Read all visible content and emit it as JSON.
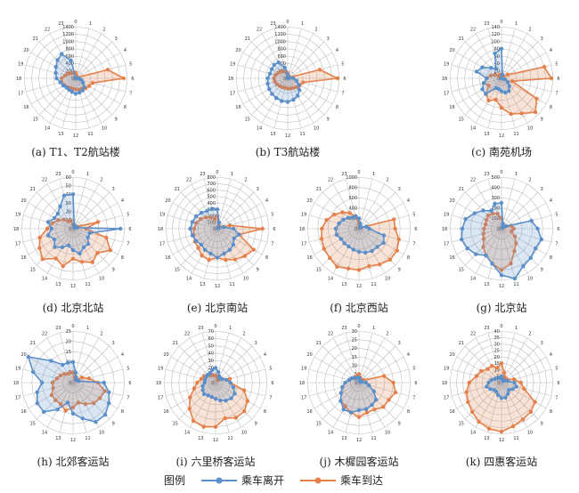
{
  "legend": {
    "title": "图例",
    "depart_label": "乘车离开",
    "arrive_label": "乘车到达"
  },
  "colors": {
    "depart": "#5b8fc9",
    "arrive": "#e5804a",
    "grid": "#bdbdbd"
  },
  "hours": [
    "0",
    "1",
    "2",
    "3",
    "4",
    "5",
    "6",
    "7",
    "8",
    "9",
    "10",
    "11",
    "12",
    "13",
    "14",
    "15",
    "16",
    "17",
    "18",
    "19",
    "20",
    "21",
    "22",
    "23"
  ],
  "chart_data": [
    {
      "type": "radar",
      "caption": "(a) T1、T2航站楼",
      "ticks": [
        0,
        200,
        400,
        600,
        800,
        1000,
        1200,
        1400
      ],
      "rmax": 1400,
      "series": [
        {
          "name": "乘车离开",
          "values": [
            20,
            10,
            5,
            5,
            5,
            10,
            80,
            150,
            230,
            330,
            380,
            400,
            420,
            380,
            360,
            350,
            390,
            430,
            520,
            560,
            620,
            700,
            760,
            500
          ]
        },
        {
          "name": "乘车到达",
          "values": [
            150,
            80,
            30,
            20,
            50,
            900,
            1300,
            480,
            420,
            380,
            330,
            320,
            300,
            290,
            300,
            330,
            360,
            400,
            380,
            300,
            250,
            200,
            170,
            160
          ]
        }
      ]
    },
    {
      "type": "radar",
      "caption": "(b) T3航站楼",
      "ticks": [
        0,
        200,
        400,
        600,
        800,
        1000,
        1200,
        1400
      ],
      "rmax": 1400,
      "series": [
        {
          "name": "乘车离开",
          "values": [
            100,
            30,
            10,
            5,
            10,
            50,
            150,
            250,
            350,
            450,
            540,
            600,
            640,
            640,
            620,
            600,
            580,
            560,
            540,
            500,
            500,
            520,
            500,
            300
          ]
        },
        {
          "name": "乘车到达",
          "values": [
            130,
            60,
            30,
            20,
            60,
            900,
            1350,
            430,
            380,
            340,
            300,
            290,
            280,
            270,
            280,
            300,
            330,
            360,
            370,
            340,
            300,
            260,
            220,
            180
          ]
        }
      ]
    },
    {
      "type": "radar",
      "caption": "(c) 南苑机场",
      "ticks": [
        0,
        20,
        40,
        60,
        80,
        100,
        120,
        140
      ],
      "rmax": 140,
      "series": [
        {
          "name": "乘车离开",
          "values": [
            80,
            10,
            0,
            0,
            0,
            0,
            0,
            10,
            20,
            30,
            40,
            40,
            35,
            30,
            30,
            60,
            60,
            50,
            40,
            70,
            60,
            40,
            30,
            70
          ]
        },
        {
          "name": "乘车到达",
          "values": [
            10,
            10,
            5,
            5,
            20,
            120,
            135,
            30,
            110,
            130,
            110,
            100,
            80,
            60,
            70,
            60,
            40,
            50,
            40,
            30,
            20,
            10,
            10,
            10
          ]
        }
      ]
    },
    {
      "type": "radar",
      "caption": "(d) 北京北站",
      "ticks": [
        0,
        10,
        20,
        30,
        40,
        50,
        60
      ],
      "rmax": 60,
      "series": [
        {
          "name": "乘车离开",
          "values": [
            40,
            5,
            3,
            2,
            2,
            5,
            55,
            20,
            20,
            25,
            25,
            30,
            25,
            20,
            25,
            30,
            25,
            30,
            25,
            30,
            25,
            25,
            30,
            40
          ]
        },
        {
          "name": "乘车到达",
          "values": [
            5,
            3,
            2,
            2,
            5,
            30,
            15,
            40,
            50,
            40,
            45,
            40,
            35,
            45,
            40,
            50,
            45,
            40,
            30,
            25,
            20,
            15,
            10,
            10
          ]
        }
      ]
    },
    {
      "type": "radar",
      "caption": "(e) 北京南站",
      "ticks": [
        0,
        100,
        200,
        300,
        400,
        500,
        600,
        700,
        800
      ],
      "rmax": 800,
      "series": [
        {
          "name": "乘车离开",
          "values": [
            300,
            100,
            30,
            10,
            20,
            100,
            250,
            350,
            300,
            350,
            380,
            400,
            450,
            400,
            380,
            350,
            380,
            400,
            420,
            400,
            380,
            350,
            320,
            320
          ]
        },
        {
          "name": "乘车到达",
          "values": [
            200,
            100,
            50,
            30,
            50,
            200,
            700,
            350,
            650,
            600,
            550,
            500,
            450,
            500,
            480,
            420,
            400,
            380,
            360,
            340,
            300,
            250,
            200,
            150
          ]
        }
      ]
    },
    {
      "type": "radar",
      "caption": "(f) 北京西站",
      "ticks": [
        0,
        200,
        400,
        600,
        800,
        1000
      ],
      "rmax": 1000,
      "series": [
        {
          "name": "乘车离开",
          "values": [
            200,
            100,
            50,
            30,
            50,
            150,
            200,
            500,
            550,
            500,
            500,
            480,
            450,
            420,
            400,
            400,
            400,
            450,
            450,
            400,
            350,
            300,
            250,
            250
          ]
        },
        {
          "name": "乘车到达",
          "values": [
            100,
            50,
            30,
            20,
            50,
            700,
            700,
            800,
            850,
            850,
            800,
            750,
            800,
            800,
            850,
            800,
            780,
            750,
            720,
            650,
            550,
            450,
            350,
            250
          ]
        }
      ]
    },
    {
      "type": "radar",
      "caption": "(g) 北京站",
      "ticks": [
        0,
        100,
        200,
        300,
        400,
        500
      ],
      "rmax": 500,
      "series": [
        {
          "name": "乘车离开",
          "values": [
            250,
            50,
            20,
            10,
            50,
            300,
            350,
            400,
            380,
            400,
            420,
            500,
            450,
            350,
            300,
            350,
            380,
            400,
            380,
            360,
            300,
            250,
            200,
            250
          ]
        },
        {
          "name": "乘车到达",
          "values": [
            100,
            50,
            20,
            10,
            30,
            100,
            120,
            100,
            150,
            200,
            250,
            350,
            400,
            350,
            300,
            250,
            200,
            180,
            170,
            160,
            170,
            180,
            170,
            150
          ]
        }
      ]
    },
    {
      "type": "radar",
      "caption": "(h) 北郊客运站",
      "ticks": [
        0,
        5,
        10,
        15,
        20,
        25
      ],
      "rmax": 25,
      "series": [
        {
          "name": "乘车离开",
          "values": [
            10,
            5,
            3,
            2,
            2,
            3,
            15,
            18,
            20,
            22,
            22,
            18,
            15,
            10,
            15,
            20,
            20,
            18,
            15,
            20,
            25,
            15,
            10,
            10
          ]
        },
        {
          "name": "乘车到达",
          "values": [
            5,
            3,
            2,
            2,
            5,
            8,
            12,
            16,
            15,
            14,
            12,
            10,
            12,
            14,
            12,
            12,
            12,
            10,
            10,
            8,
            7,
            6,
            5,
            5
          ]
        }
      ]
    },
    {
      "type": "radar",
      "caption": "(i) 六里桥客运站",
      "ticks": [
        0,
        10,
        20,
        30,
        40,
        50,
        60,
        70
      ],
      "rmax": 70,
      "series": [
        {
          "name": "乘车离开",
          "values": [
            20,
            15,
            10,
            8,
            10,
            15,
            20,
            25,
            30,
            30,
            28,
            25,
            22,
            20,
            20,
            22,
            20,
            18,
            15,
            15,
            15,
            15,
            15,
            18
          ]
        },
        {
          "name": "乘车到达",
          "values": [
            10,
            8,
            5,
            5,
            10,
            20,
            20,
            40,
            50,
            55,
            55,
            50,
            60,
            62,
            60,
            50,
            40,
            30,
            25,
            20,
            18,
            15,
            12,
            10
          ]
        }
      ]
    },
    {
      "type": "radar",
      "caption": "(j) 木樨园客运站",
      "ticks": [
        0,
        5,
        10,
        15,
        20,
        25,
        30
      ],
      "rmax": 30,
      "series": [
        {
          "name": "乘车离开",
          "values": [
            3,
            2,
            1,
            1,
            1,
            2,
            4,
            6,
            10,
            14,
            15,
            16,
            16,
            18,
            18,
            15,
            12,
            10,
            8,
            6,
            5,
            4,
            3,
            3
          ]
        },
        {
          "name": "乘车到达",
          "values": [
            5,
            3,
            2,
            2,
            3,
            15,
            20,
            22,
            20,
            20,
            18,
            18,
            20,
            18,
            16,
            15,
            12,
            10,
            8,
            6,
            5,
            4,
            4,
            4
          ]
        }
      ]
    },
    {
      "type": "radar",
      "caption": "(k) 四惠客运站",
      "ticks": [
        0,
        5,
        10,
        15,
        20,
        25,
        30,
        35,
        40
      ],
      "rmax": 40,
      "series": [
        {
          "name": "乘车离开",
          "values": [
            5,
            3,
            2,
            2,
            3,
            5,
            10,
            12,
            10,
            8,
            10,
            12,
            12,
            10,
            8,
            8,
            10,
            12,
            10,
            8,
            6,
            5,
            4,
            4
          ]
        },
        {
          "name": "乘车到达",
          "values": [
            15,
            8,
            5,
            4,
            5,
            10,
            15,
            18,
            30,
            32,
            33,
            35,
            38,
            37,
            35,
            32,
            30,
            28,
            25,
            20,
            18,
            15,
            15,
            12
          ]
        }
      ]
    }
  ]
}
